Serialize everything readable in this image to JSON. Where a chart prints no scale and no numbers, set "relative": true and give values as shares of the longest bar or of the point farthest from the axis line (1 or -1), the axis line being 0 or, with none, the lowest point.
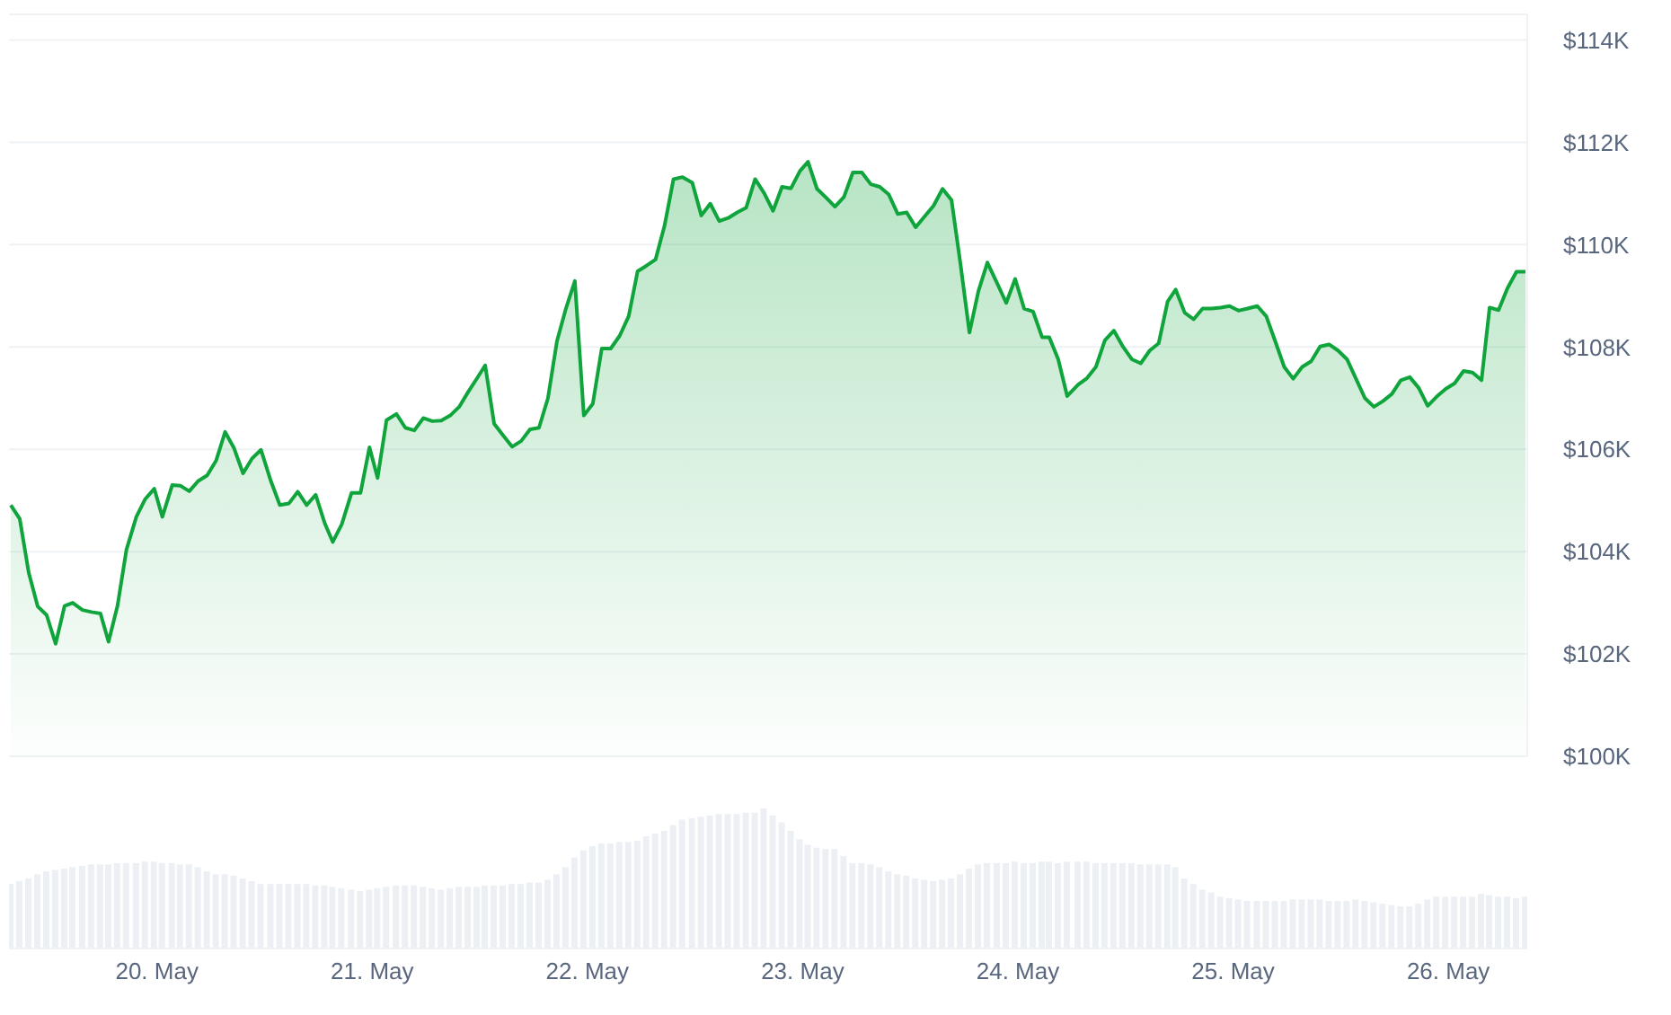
{
  "chart_data": [
    {
      "type": "area",
      "x": [
        "--05-19T07:42",
        "--05-19T08:42",
        "--05-19T09:42",
        "--05-19T10:42",
        "--05-19T11:42",
        "--05-19T12:42",
        "--05-19T13:42",
        "--05-19T14:36",
        "--05-19T15:42",
        "--05-19T16:42",
        "--05-19T17:42",
        "--05-19T18:36",
        "--05-19T19:36",
        "--05-19T20:36",
        "--05-19T21:42",
        "--05-19T22:42",
        "--05-19T23:42",
        "--05-20T00:36",
        "--05-20T01:42",
        "--05-20T02:36",
        "--05-20T03:36",
        "--05-20T04:36",
        "--05-20T05:36",
        "--05-20T06:36",
        "--05-20T07:36",
        "--05-20T08:36",
        "--05-20T09:36",
        "--05-20T10:36",
        "--05-20T11:36",
        "--05-20T12:42",
        "--05-20T13:42",
        "--05-20T14:42",
        "--05-20T15:42",
        "--05-20T16:42",
        "--05-20T17:42",
        "--05-20T18:42",
        "--05-20T19:36",
        "--05-20T20:36",
        "--05-20T21:42",
        "--05-20T22:42",
        "--05-20T23:42",
        "--05-21T00:36",
        "--05-21T01:36",
        "--05-21T02:42",
        "--05-21T03:42",
        "--05-21T04:42",
        "--05-21T05:42",
        "--05-21T06:42",
        "--05-21T07:42",
        "--05-21T08:42",
        "--05-21T09:42",
        "--05-21T10:42",
        "--05-21T11:42",
        "--05-21T12:36",
        "--05-21T13:36",
        "--05-21T14:36",
        "--05-21T15:36",
        "--05-21T16:36",
        "--05-21T17:36",
        "--05-21T18:36",
        "--05-21T19:36",
        "--05-21T20:36",
        "--05-21T21:36",
        "--05-21T22:36",
        "--05-21T23:36",
        "--05-22T00:36",
        "--05-22T01:36",
        "--05-22T02:36",
        "--05-22T03:36",
        "--05-22T04:36",
        "--05-22T05:36",
        "--05-22T06:36",
        "--05-22T07:36",
        "--05-22T08:36",
        "--05-22T09:36",
        "--05-22T10:36",
        "--05-22T11:42",
        "--05-22T12:42",
        "--05-22T13:42",
        "--05-22T14:42",
        "--05-22T15:42",
        "--05-22T16:42",
        "--05-22T17:42",
        "--05-22T18:42",
        "--05-22T19:42",
        "--05-22T20:42",
        "--05-22T21:42",
        "--05-22T22:42",
        "--05-22T23:42",
        "--05-23T00:36",
        "--05-23T01:36",
        "--05-23T02:36",
        "--05-23T03:36",
        "--05-23T04:36",
        "--05-23T05:36",
        "--05-23T06:36",
        "--05-23T07:36",
        "--05-23T08:36",
        "--05-23T09:36",
        "--05-23T10:36",
        "--05-23T11:36",
        "--05-23T12:36",
        "--05-23T13:36",
        "--05-23T14:36",
        "--05-23T15:36",
        "--05-23T16:36",
        "--05-23T17:36",
        "--05-23T18:36",
        "--05-23T19:36",
        "--05-23T20:36",
        "--05-23T21:42",
        "--05-23T22:42",
        "--05-23T23:42",
        "--05-24T00:42",
        "--05-24T01:42",
        "--05-24T02:42",
        "--05-24T03:30",
        "--05-24T04:30",
        "--05-24T05:30",
        "--05-24T06:42",
        "--05-24T07:42",
        "--05-24T08:42",
        "--05-24T09:42",
        "--05-24T10:42",
        "--05-24T11:42",
        "--05-24T12:42",
        "--05-24T13:42",
        "--05-24T14:42",
        "--05-24T15:42",
        "--05-24T16:42",
        "--05-24T17:36",
        "--05-24T18:36",
        "--05-24T19:36",
        "--05-24T20:36",
        "--05-24T21:36",
        "--05-24T22:36",
        "--05-24T23:36",
        "--05-25T00:36",
        "--05-25T01:36",
        "--05-25T02:42",
        "--05-25T03:42",
        "--05-25T04:42",
        "--05-25T05:42",
        "--05-25T06:42",
        "--05-25T07:42",
        "--05-25T08:42",
        "--05-25T09:42",
        "--05-25T10:42",
        "--05-25T11:42",
        "--05-25T12:42",
        "--05-25T13:42",
        "--05-25T14:42",
        "--05-25T15:42",
        "--05-25T16:42",
        "--05-25T17:42",
        "--05-25T18:42",
        "--05-25T19:42",
        "--05-25T20:42",
        "--05-25T21:42",
        "--05-25T22:42",
        "--05-25T23:42",
        "--05-26T00:42",
        "--05-26T01:42",
        "--05-26T02:42",
        "--05-26T03:42",
        "--05-26T04:36",
        "--05-26T05:36",
        "--05-26T06:36",
        "--05-26T07:36",
        "--05-26T08:36"
      ],
      "series": [
        {
          "color": "#10a53c",
          "values": [
            104.91,
            104.64,
            103.59,
            102.93,
            102.76,
            102.2,
            102.94,
            103.0,
            102.86,
            102.82,
            102.79,
            102.24,
            102.94,
            104.04,
            104.68,
            105.03,
            105.23,
            104.68,
            105.3,
            105.29,
            105.18,
            105.38,
            105.49,
            105.78,
            106.34,
            106.02,
            105.53,
            105.82,
            105.99,
            105.38,
            104.91,
            104.94,
            105.17,
            104.91,
            105.11,
            104.56,
            104.19,
            104.53,
            105.15,
            105.15,
            106.04,
            105.44,
            106.57,
            106.69,
            106.42,
            106.37,
            106.61,
            106.55,
            106.56,
            106.66,
            106.83,
            107.12,
            107.39,
            107.64,
            106.5,
            106.27,
            106.05,
            106.16,
            106.39,
            106.42,
            107.0,
            108.11,
            108.75,
            109.29,
            106.66,
            106.89,
            107.97,
            107.97,
            108.22,
            108.6,
            109.48,
            109.59,
            109.71,
            110.37,
            111.28,
            111.32,
            111.21,
            110.57,
            110.8,
            110.46,
            110.52,
            110.63,
            110.72,
            111.28,
            111.01,
            110.66,
            111.13,
            111.1,
            111.44,
            111.62,
            111.09,
            110.92,
            110.74,
            110.93,
            111.41,
            111.41,
            111.18,
            111.13,
            110.98,
            110.6,
            110.63,
            110.34,
            110.55,
            110.76,
            111.09,
            110.87,
            109.62,
            108.28,
            109.09,
            109.65,
            109.24,
            108.86,
            109.33,
            108.75,
            108.69,
            108.19,
            108.19,
            107.76,
            107.04,
            107.26,
            107.39,
            107.61,
            108.13,
            108.32,
            108.01,
            107.76,
            107.68,
            107.93,
            108.07,
            108.89,
            109.12,
            108.67,
            108.54,
            108.75,
            108.75,
            108.77,
            108.8,
            108.71,
            108.75,
            108.8,
            108.6,
            108.11,
            107.61,
            107.38,
            107.61,
            107.72,
            108.01,
            108.05,
            107.93,
            107.76,
            107.38,
            107.0,
            106.83,
            106.94,
            107.08,
            107.35,
            107.41,
            107.2,
            106.85,
            107.03,
            107.18,
            107.29,
            107.53,
            107.5,
            107.35,
            108.77,
            108.72,
            109.15,
            109.47,
            109.47
          ]
        }
      ],
      "xlim": [
        "--05-19T07:30",
        "--05-26T08:48"
      ],
      "ylim": [
        100,
        114.5
      ],
      "yticks": [
        {
          "value": 100,
          "label": "$100K"
        },
        {
          "value": 102,
          "label": "$102K"
        },
        {
          "value": 104,
          "label": "$104K"
        },
        {
          "value": 106,
          "label": "$106K"
        },
        {
          "value": 108,
          "label": "$108K"
        },
        {
          "value": 110,
          "label": "$110K"
        },
        {
          "value": 112,
          "label": "$112K"
        },
        {
          "value": 114,
          "label": "$114K"
        }
      ],
      "grid": "y",
      "tick_labels": "y"
    },
    {
      "type": "bar",
      "relative": true,
      "x": [
        "--05-19T07:42",
        "--05-19T08:42",
        "--05-19T09:42",
        "--05-19T10:42",
        "--05-19T11:42",
        "--05-19T12:42",
        "--05-19T13:42",
        "--05-19T14:36",
        "--05-19T15:42",
        "--05-19T16:42",
        "--05-19T17:42",
        "--05-19T18:36",
        "--05-19T19:36",
        "--05-19T20:36",
        "--05-19T21:42",
        "--05-19T22:42",
        "--05-19T23:42",
        "--05-20T00:36",
        "--05-20T01:42",
        "--05-20T02:36",
        "--05-20T03:36",
        "--05-20T04:36",
        "--05-20T05:36",
        "--05-20T06:36",
        "--05-20T07:36",
        "--05-20T08:36",
        "--05-20T09:36",
        "--05-20T10:36",
        "--05-20T11:36",
        "--05-20T12:42",
        "--05-20T13:42",
        "--05-20T14:42",
        "--05-20T15:42",
        "--05-20T16:42",
        "--05-20T17:42",
        "--05-20T18:42",
        "--05-20T19:36",
        "--05-20T20:36",
        "--05-20T21:42",
        "--05-20T22:42",
        "--05-20T23:42",
        "--05-21T00:36",
        "--05-21T01:36",
        "--05-21T02:42",
        "--05-21T03:42",
        "--05-21T04:42",
        "--05-21T05:42",
        "--05-21T06:42",
        "--05-21T07:42",
        "--05-21T08:42",
        "--05-21T09:42",
        "--05-21T10:42",
        "--05-21T11:42",
        "--05-21T12:36",
        "--05-21T13:36",
        "--05-21T14:36",
        "--05-21T15:36",
        "--05-21T16:36",
        "--05-21T17:36",
        "--05-21T18:36",
        "--05-21T19:36",
        "--05-21T20:36",
        "--05-21T21:36",
        "--05-21T22:36",
        "--05-21T23:36",
        "--05-22T00:36",
        "--05-22T01:36",
        "--05-22T02:36",
        "--05-22T03:36",
        "--05-22T04:36",
        "--05-22T05:36",
        "--05-22T06:36",
        "--05-22T07:36",
        "--05-22T08:36",
        "--05-22T09:36",
        "--05-22T10:36",
        "--05-22T11:42",
        "--05-22T12:42",
        "--05-22T13:42",
        "--05-22T14:42",
        "--05-22T15:42",
        "--05-22T16:42",
        "--05-22T17:42",
        "--05-22T18:42",
        "--05-22T19:42",
        "--05-22T20:42",
        "--05-22T21:42",
        "--05-22T22:42",
        "--05-22T23:42",
        "--05-23T00:36",
        "--05-23T01:36",
        "--05-23T02:36",
        "--05-23T03:36",
        "--05-23T04:36",
        "--05-23T05:36",
        "--05-23T06:36",
        "--05-23T07:36",
        "--05-23T08:36",
        "--05-23T09:36",
        "--05-23T10:36",
        "--05-23T11:36",
        "--05-23T12:36",
        "--05-23T13:36",
        "--05-23T14:36",
        "--05-23T15:36",
        "--05-23T16:36",
        "--05-23T17:36",
        "--05-23T18:36",
        "--05-23T19:36",
        "--05-23T20:36",
        "--05-23T21:42",
        "--05-23T22:42",
        "--05-23T23:42",
        "--05-24T00:42",
        "--05-24T01:42",
        "--05-24T02:42",
        "--05-24T03:30",
        "--05-24T04:30",
        "--05-24T05:30",
        "--05-24T06:42",
        "--05-24T07:42",
        "--05-24T08:42",
        "--05-24T09:42",
        "--05-24T10:42",
        "--05-24T11:42",
        "--05-24T12:42",
        "--05-24T13:42",
        "--05-24T14:42",
        "--05-24T15:42",
        "--05-24T16:42",
        "--05-24T17:36",
        "--05-24T18:36",
        "--05-24T19:36",
        "--05-24T20:36",
        "--05-24T21:36",
        "--05-24T22:36",
        "--05-24T23:36",
        "--05-25T00:36",
        "--05-25T01:36",
        "--05-25T02:42",
        "--05-25T03:42",
        "--05-25T04:42",
        "--05-25T05:42",
        "--05-25T06:42",
        "--05-25T07:42",
        "--05-25T08:42",
        "--05-25T09:42",
        "--05-25T10:42",
        "--05-25T11:42",
        "--05-25T12:42",
        "--05-25T13:42",
        "--05-25T14:42",
        "--05-25T15:42",
        "--05-25T16:42",
        "--05-25T17:42",
        "--05-25T18:42",
        "--05-25T19:42",
        "--05-25T20:42",
        "--05-25T21:42",
        "--05-25T22:42",
        "--05-25T23:42",
        "--05-26T00:42",
        "--05-26T01:42",
        "--05-26T02:42",
        "--05-26T03:42",
        "--05-26T04:36",
        "--05-26T05:36",
        "--05-26T06:36",
        "--05-26T07:36",
        "--05-26T08:36"
      ],
      "series": [
        {
          "color": "#eceff3",
          "values": [
            0.46,
            0.48,
            0.5,
            0.53,
            0.55,
            0.56,
            0.57,
            0.58,
            0.59,
            0.6,
            0.6,
            0.6,
            0.61,
            0.61,
            0.61,
            0.62,
            0.62,
            0.61,
            0.61,
            0.6,
            0.6,
            0.58,
            0.55,
            0.53,
            0.53,
            0.52,
            0.5,
            0.48,
            0.46,
            0.46,
            0.46,
            0.46,
            0.46,
            0.46,
            0.45,
            0.45,
            0.44,
            0.43,
            0.42,
            0.41,
            0.42,
            0.43,
            0.44,
            0.45,
            0.45,
            0.45,
            0.44,
            0.43,
            0.42,
            0.43,
            0.44,
            0.44,
            0.44,
            0.45,
            0.45,
            0.45,
            0.46,
            0.46,
            0.47,
            0.47,
            0.49,
            0.53,
            0.58,
            0.65,
            0.7,
            0.73,
            0.75,
            0.75,
            0.76,
            0.76,
            0.77,
            0.8,
            0.82,
            0.84,
            0.88,
            0.92,
            0.93,
            0.94,
            0.95,
            0.96,
            0.96,
            0.96,
            0.97,
            0.97,
            1,
            0.95,
            0.9,
            0.84,
            0.78,
            0.74,
            0.72,
            0.71,
            0.71,
            0.66,
            0.61,
            0.61,
            0.6,
            0.58,
            0.55,
            0.53,
            0.52,
            0.5,
            0.49,
            0.48,
            0.49,
            0.5,
            0.53,
            0.57,
            0.6,
            0.61,
            0.61,
            0.61,
            0.62,
            0.61,
            0.61,
            0.62,
            0.62,
            0.61,
            0.62,
            0.62,
            0.62,
            0.61,
            0.61,
            0.61,
            0.61,
            0.61,
            0.6,
            0.6,
            0.6,
            0.6,
            0.58,
            0.5,
            0.46,
            0.42,
            0.4,
            0.37,
            0.36,
            0.35,
            0.34,
            0.34,
            0.34,
            0.34,
            0.34,
            0.35,
            0.35,
            0.35,
            0.35,
            0.34,
            0.34,
            0.34,
            0.35,
            0.34,
            0.33,
            0.32,
            0.31,
            0.3,
            0.3,
            0.32,
            0.35,
            0.37,
            0.37,
            0.37,
            0.37,
            0.37,
            0.39,
            0.38,
            0.37,
            0.37,
            0.36,
            0.37
          ]
        }
      ],
      "xlim": [
        "--05-19T07:30",
        "--05-26T08:48"
      ],
      "xticks": [
        {
          "value": "--05-20",
          "label": "20. May"
        },
        {
          "value": "--05-21",
          "label": "21. May"
        },
        {
          "value": "--05-22",
          "label": "22. May"
        },
        {
          "value": "--05-23",
          "label": "23. May"
        },
        {
          "value": "--05-24",
          "label": "24. May"
        },
        {
          "value": "--05-25",
          "label": "25. May"
        },
        {
          "value": "--05-26",
          "label": "26. May"
        }
      ],
      "tick_labels": "x"
    }
  ]
}
